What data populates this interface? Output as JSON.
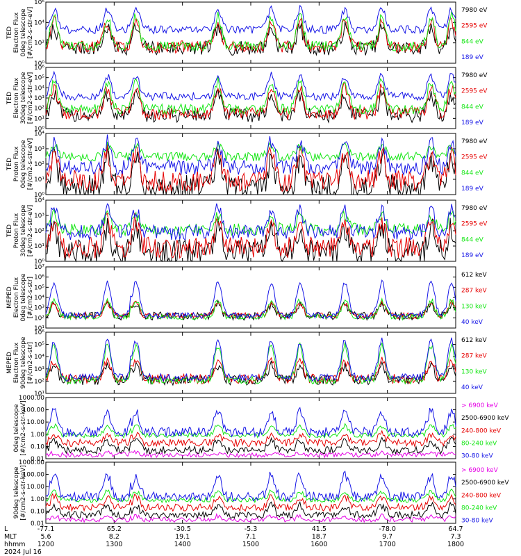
{
  "colors": {
    "blue": "#1414e6",
    "red": "#e60000",
    "green": "#14e614",
    "black": "#000000",
    "magenta": "#e600e6",
    "frame": "#000000",
    "background": "#ffffff"
  },
  "footer": {
    "row_labels": [
      "L",
      "MLT",
      "hhmm",
      "2024 Jul 16"
    ],
    "columns": [
      {
        "l": "-77.1",
        "mlt": "5.6",
        "hhmm": "1200"
      },
      {
        "l": "65.2",
        "mlt": "8.2",
        "hhmm": "1300"
      },
      {
        "l": "-30.5",
        "mlt": "19.1",
        "hhmm": "1400"
      },
      {
        "l": "-5.3",
        "mlt": "7.1",
        "hhmm": "1500"
      },
      {
        "l": "41.5",
        "mlt": "18.7",
        "hhmm": "1600"
      },
      {
        "l": "-78.0",
        "mlt": "9.7",
        "hhmm": "1700"
      },
      {
        "l": "64.7",
        "mlt": "7.3",
        "hhmm": "1800"
      }
    ]
  },
  "chart_data": [
    {
      "type": "line",
      "ylabel_lines": [
        "TED",
        "Electron Flux",
        "0deg telescope",
        "[#/cm2-s-str-eV]"
      ],
      "scale": "log",
      "ylim": [
        1,
        1000000
      ],
      "yticks": [
        {
          "v": 1,
          "label": "10⁰"
        },
        {
          "v": 100,
          "label": "10²"
        },
        {
          "v": 10000,
          "label": "10⁴"
        },
        {
          "v": 1000000,
          "label": "10⁶"
        }
      ],
      "xlim": [
        1200,
        1800
      ],
      "x_unit": "hhmm",
      "series": [
        {
          "name": "7980 eV",
          "color": "#000000",
          "base": 30,
          "peak": 3000,
          "noise": 0.7
        },
        {
          "name": "2595 eV",
          "color": "#e60000",
          "base": 40,
          "peak": 12000,
          "noise": 0.6
        },
        {
          "name": "844 eV",
          "color": "#14e614",
          "base": 50,
          "peak": 40000,
          "noise": 0.5
        },
        {
          "name": "189 eV",
          "color": "#1414e6",
          "base": 2000,
          "peak": 200000,
          "noise": 0.4
        }
      ]
    },
    {
      "type": "line",
      "ylabel_lines": [
        "TED",
        "Electron Flux",
        "30deg telescope",
        "[#/cm2-s-str-eV]"
      ],
      "scale": "log",
      "ylim": [
        1,
        1000000
      ],
      "yticks": [
        {
          "v": 1,
          "label": "10⁰"
        },
        {
          "v": 10,
          "label": "10¹"
        },
        {
          "v": 100,
          "label": "10²"
        },
        {
          "v": 1000,
          "label": "10³"
        },
        {
          "v": 10000,
          "label": "10⁴"
        },
        {
          "v": 100000,
          "label": "10⁵"
        },
        {
          "v": 1000000,
          "label": "10⁶"
        }
      ],
      "xlim": [
        1200,
        1800
      ],
      "x_unit": "hhmm",
      "series": [
        {
          "name": "7980 eV",
          "color": "#000000",
          "base": 20,
          "peak": 2000,
          "noise": 0.7
        },
        {
          "name": "2595 eV",
          "color": "#e60000",
          "base": 30,
          "peak": 10000,
          "noise": 0.6
        },
        {
          "name": "844 eV",
          "color": "#14e614",
          "base": 80,
          "peak": 40000,
          "noise": 0.5
        },
        {
          "name": "189 eV",
          "color": "#1414e6",
          "base": 1500,
          "peak": 150000,
          "noise": 0.4
        }
      ]
    },
    {
      "type": "line",
      "ylabel_lines": [
        "TED",
        "Proton Flux",
        "0deg telescope",
        "[#/cm2-s-str-eV]"
      ],
      "scale": "log",
      "ylim": [
        1,
        10000
      ],
      "yticks": [
        {
          "v": 1,
          "label": "10⁰"
        },
        {
          "v": 10,
          "label": "10¹"
        },
        {
          "v": 100,
          "label": "10²"
        },
        {
          "v": 1000,
          "label": "10³"
        },
        {
          "v": 10000,
          "label": "10⁴"
        }
      ],
      "xlim": [
        1200,
        1800
      ],
      "x_unit": "hhmm",
      "series": [
        {
          "name": "7980 eV",
          "color": "#000000",
          "base": 3,
          "peak": 200,
          "noise": 0.8
        },
        {
          "name": "2595 eV",
          "color": "#e60000",
          "base": 8,
          "peak": 500,
          "noise": 0.7
        },
        {
          "name": "844 eV",
          "color": "#14e614",
          "base": 300,
          "peak": 1500,
          "noise": 0.3
        },
        {
          "name": "189 eV",
          "color": "#1414e6",
          "base": 60,
          "peak": 3000,
          "noise": 0.5
        }
      ]
    },
    {
      "type": "line",
      "ylabel_lines": [
        "TED",
        "Proton Flux",
        "30deg telescope",
        "[#/cm2-s-str-eV]"
      ],
      "scale": "log",
      "ylim": [
        1,
        10000
      ],
      "yticks": [
        {
          "v": 1,
          "label": "10⁰"
        },
        {
          "v": 10,
          "label": "10¹"
        },
        {
          "v": 100,
          "label": "10²"
        },
        {
          "v": 1000,
          "label": "10³"
        },
        {
          "v": 10000,
          "label": "10⁴"
        }
      ],
      "xlim": [
        1200,
        1800
      ],
      "x_unit": "hhmm",
      "series": [
        {
          "name": "7980 eV",
          "color": "#000000",
          "base": 4,
          "peak": 150,
          "noise": 0.8
        },
        {
          "name": "2595 eV",
          "color": "#e60000",
          "base": 8,
          "peak": 400,
          "noise": 0.7
        },
        {
          "name": "844 eV",
          "color": "#14e614",
          "base": 120,
          "peak": 1000,
          "noise": 0.4
        },
        {
          "name": "189 eV",
          "color": "#1414e6",
          "base": 80,
          "peak": 2500,
          "noise": 0.5
        }
      ]
    },
    {
      "type": "line",
      "ylabel_lines": [
        "MEPED",
        "Electron Flux",
        "0deg telescope",
        "[#/cm2-s-str]"
      ],
      "scale": "log",
      "ylim": [
        10,
        10000000
      ],
      "yticks": [
        {
          "v": 10,
          "label": "10¹"
        },
        {
          "v": 100,
          "label": "10²"
        },
        {
          "v": 1000,
          "label": "10³"
        },
        {
          "v": 10000,
          "label": "10⁴"
        },
        {
          "v": 100000,
          "label": "10⁵"
        },
        {
          "v": 1000000,
          "label": "10⁶"
        },
        {
          "v": 10000000,
          "label": "10⁷"
        }
      ],
      "xlim": [
        1200,
        1800
      ],
      "x_unit": "hhmm",
      "series": [
        {
          "name": "612 keV",
          "color": "#000000",
          "base": 150,
          "peak": 2000,
          "noise": 0.4
        },
        {
          "name": "287 keV",
          "color": "#e60000",
          "base": 160,
          "peak": 3000,
          "noise": 0.3
        },
        {
          "name": "130 keV",
          "color": "#14e614",
          "base": 130,
          "peak": 5000,
          "noise": 0.3
        },
        {
          "name": "40 keV",
          "color": "#1414e6",
          "base": 170,
          "peak": 300000,
          "noise": 0.3
        }
      ]
    },
    {
      "type": "line",
      "ylabel_lines": [
        "MEPED",
        "Electron Flux",
        "90deg telescope",
        "[#/cm2-s-str]"
      ],
      "scale": "log",
      "ylim": [
        10,
        1000000
      ],
      "yticks": [
        {
          "v": 10,
          "label": "10¹"
        },
        {
          "v": 100,
          "label": "10²"
        },
        {
          "v": 1000,
          "label": "10³"
        },
        {
          "v": 10000,
          "label": "10⁴"
        },
        {
          "v": 100000,
          "label": "10⁵"
        },
        {
          "v": 1000000,
          "label": "10⁶"
        }
      ],
      "xlim": [
        1200,
        1800
      ],
      "x_unit": "hhmm",
      "series": [
        {
          "name": "612 keV",
          "color": "#000000",
          "base": 120,
          "peak": 2000,
          "noise": 0.4
        },
        {
          "name": "287 keV",
          "color": "#e60000",
          "base": 150,
          "peak": 5000,
          "noise": 0.4
        },
        {
          "name": "130 keV",
          "color": "#14e614",
          "base": 120,
          "peak": 80000,
          "noise": 0.3
        },
        {
          "name": "40 keV",
          "color": "#1414e6",
          "base": 200,
          "peak": 200000,
          "noise": 0.3
        }
      ]
    },
    {
      "type": "line",
      "ylabel_lines": [
        "0deg telescope",
        "[#/cm2-s-str-keV]"
      ],
      "scale": "log",
      "ylim": [
        0.01,
        1000
      ],
      "yticks": [
        {
          "v": 0.01,
          "label": "0.01"
        },
        {
          "v": 0.1,
          "label": "0.10"
        },
        {
          "v": 1,
          "label": "1.00"
        },
        {
          "v": 10,
          "label": "10.00"
        },
        {
          "v": 100,
          "label": "100.00"
        },
        {
          "v": 1000,
          "label": "1000.00"
        }
      ],
      "xlim": [
        1200,
        1800
      ],
      "x_unit": "hhmm",
      "series": [
        {
          "name": "> 6900 keV",
          "color": "#e600e6",
          "base": 0.02,
          "peak": 0.03,
          "noise": 0.2
        },
        {
          "name": "2500-6900 keV",
          "color": "#000000",
          "base": 0.05,
          "peak": 0.3,
          "noise": 0.3
        },
        {
          "name": "240-800 keV",
          "color": "#e60000",
          "base": 0.2,
          "peak": 1,
          "noise": 0.3
        },
        {
          "name": "80-240 keV",
          "color": "#14e614",
          "base": 0.8,
          "peak": 5,
          "noise": 0.2
        },
        {
          "name": "30-80 keV",
          "color": "#1414e6",
          "base": 1.5,
          "peak": 80,
          "noise": 0.4
        }
      ]
    },
    {
      "type": "line",
      "ylabel_lines": [
        "90deg telescope",
        "[#/cm2-s-str-keV]"
      ],
      "scale": "log",
      "ylim": [
        0.01,
        1000
      ],
      "yticks": [
        {
          "v": 0.01,
          "label": "0.01"
        },
        {
          "v": 0.1,
          "label": "0.10"
        },
        {
          "v": 1,
          "label": "1.00"
        },
        {
          "v": 10,
          "label": "10.00"
        },
        {
          "v": 100,
          "label": "100.00"
        },
        {
          "v": 1000,
          "label": "1000.00"
        }
      ],
      "xlim": [
        1200,
        1800
      ],
      "x_unit": "hhmm",
      "series": [
        {
          "name": "> 6900 keV",
          "color": "#e600e6",
          "base": 0.02,
          "peak": 0.04,
          "noise": 0.2
        },
        {
          "name": "2500-6900 keV",
          "color": "#000000",
          "base": 0.05,
          "peak": 0.3,
          "noise": 0.3
        },
        {
          "name": "240-800 keV",
          "color": "#e60000",
          "base": 0.2,
          "peak": 1.5,
          "noise": 0.3
        },
        {
          "name": "80-240 keV",
          "color": "#14e614",
          "base": 0.8,
          "peak": 4,
          "noise": 0.2
        },
        {
          "name": "30-80 keV",
          "color": "#1414e6",
          "base": 1.5,
          "peak": 90,
          "noise": 0.4
        }
      ]
    }
  ]
}
